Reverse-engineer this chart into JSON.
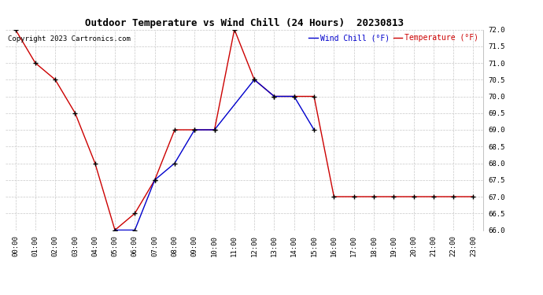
{
  "title": "Outdoor Temperature vs Wind Chill (24 Hours)  20230813",
  "copyright_text": "Copyright 2023 Cartronics.com",
  "legend_wind_chill": "Wind Chill (°F)",
  "legend_temperature": "Temperature (°F)",
  "ylim": [
    66.0,
    72.0
  ],
  "ytick_step": 0.5,
  "background_color": "#ffffff",
  "grid_color": "#c8c8c8",
  "temp_color": "#cc0000",
  "wind_color": "#0000cc",
  "hours": [
    0,
    1,
    2,
    3,
    4,
    5,
    6,
    7,
    8,
    9,
    10,
    11,
    12,
    13,
    14,
    15,
    16,
    17,
    18,
    19,
    20,
    21,
    22,
    23
  ],
  "temperature": [
    72.0,
    71.0,
    70.5,
    69.5,
    68.0,
    66.0,
    66.5,
    67.5,
    69.0,
    69.0,
    69.0,
    72.0,
    70.5,
    70.0,
    70.0,
    70.0,
    67.0,
    67.0,
    67.0,
    67.0,
    67.0,
    67.0,
    67.0,
    67.0
  ],
  "wind_chill": [
    null,
    null,
    null,
    null,
    null,
    66.0,
    66.0,
    67.5,
    68.0,
    69.0,
    69.0,
    null,
    70.5,
    70.0,
    70.0,
    69.0,
    null,
    null,
    null,
    null,
    null,
    null,
    null,
    null
  ],
  "title_fontsize": 9,
  "legend_fontsize": 7,
  "tick_fontsize": 6.5,
  "copyright_fontsize": 6.5
}
